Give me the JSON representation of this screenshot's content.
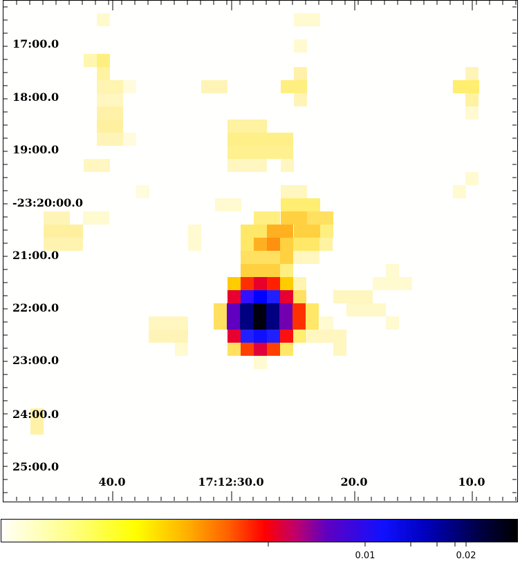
{
  "dec_labels": [
    "17:00.0",
    "18:00.0",
    "19:00.0",
    "-23:20:00.0",
    "21:00.0",
    "22:00.0",
    "23:00.0",
    "24:00.0",
    "25:00.0"
  ],
  "ra_labels": [
    "40.0",
    "17:12:30.0",
    "20.0",
    "10.0"
  ],
  "colorbar": {
    "tick_labels": [
      "0.01",
      "0.02"
    ]
  }
}
